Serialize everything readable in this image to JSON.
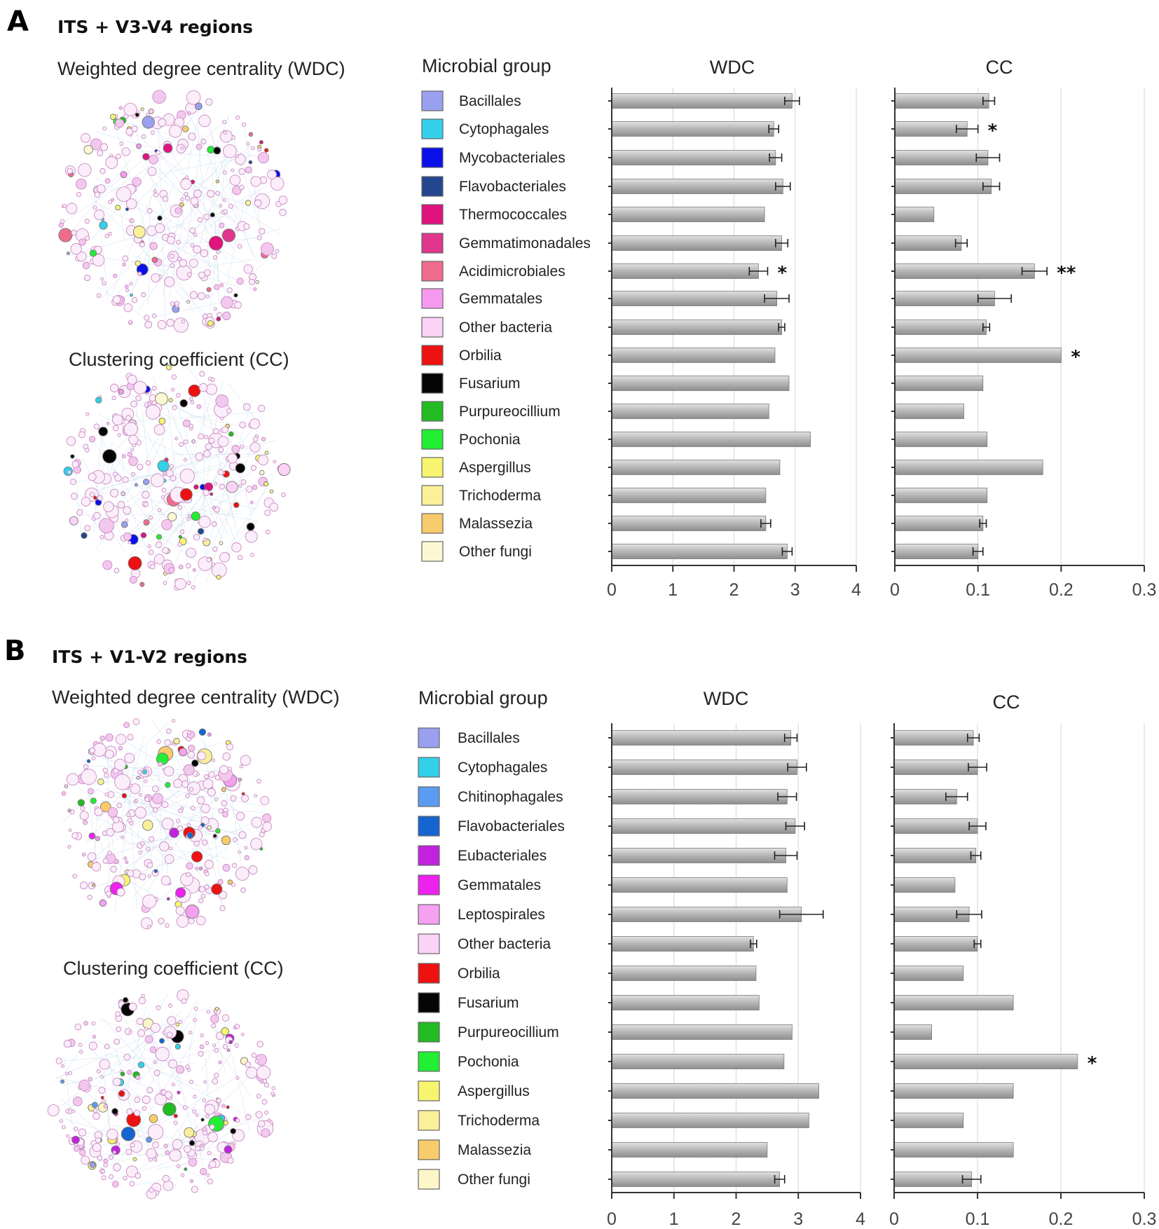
{
  "chart_data": [
    {
      "panel": "A",
      "title": "ITS + V3-V4 regions",
      "network_labels": [
        "Weighted degree centrality (WDC)",
        "Clustering coefficient (CC)"
      ],
      "legend_title": "Microbial group",
      "type": "bar",
      "orientation": "horizontal",
      "groups": [
        {
          "name": "Bacillales",
          "color": "#9aa0f0"
        },
        {
          "name": "Cytophagales",
          "color": "#33d0ea"
        },
        {
          "name": "Mycobacteriales",
          "color": "#0a10e8"
        },
        {
          "name": "Flavobacteriales",
          "color": "#23468f"
        },
        {
          "name": "Thermococcales",
          "color": "#e0137f"
        },
        {
          "name": "Gemmatimonadales",
          "color": "#e0368e"
        },
        {
          "name": "Acidimicrobiales",
          "color": "#f06c8c"
        },
        {
          "name": "Gemmatales",
          "color": "#f59af0"
        },
        {
          "name": "Other bacteria",
          "color": "#fbd3f6"
        },
        {
          "name": "Orbilia",
          "color": "#ee1111"
        },
        {
          "name": "Fusarium",
          "color": "#050505"
        },
        {
          "name": "Purpureocillium",
          "color": "#22bb22"
        },
        {
          "name": "Pochonia",
          "color": "#22ee33"
        },
        {
          "name": "Aspergillus",
          "color": "#f7f570"
        },
        {
          "name": "Trichoderma",
          "color": "#fbf09a"
        },
        {
          "name": "Malassezia",
          "color": "#f8cc6c"
        },
        {
          "name": "Other fungi",
          "color": "#fdf8d4"
        }
      ],
      "series": [
        {
          "name": "WDC",
          "xlim": [
            0,
            4
          ],
          "ticks": [
            "0",
            "1",
            "2",
            "3",
            "4"
          ],
          "values": [
            2.95,
            2.65,
            2.68,
            2.8,
            2.5,
            2.78,
            2.4,
            2.7,
            2.78,
            2.67,
            2.9,
            2.57,
            3.25,
            2.75,
            2.52,
            2.52,
            2.87
          ],
          "errors": [
            0.12,
            0.08,
            0.1,
            0.12,
            0,
            0.1,
            0.15,
            0.2,
            0.05,
            0,
            0,
            0,
            0,
            0,
            0,
            0.08,
            0.08
          ],
          "significance": [
            "",
            "",
            "",
            "",
            "",
            "",
            "*",
            "",
            "",
            "",
            "",
            "",
            "",
            "",
            "",
            "",
            ""
          ]
        },
        {
          "name": "CC",
          "xlim": [
            0,
            0.3
          ],
          "ticks": [
            "0",
            "0.1",
            "0.2",
            "0.3"
          ],
          "values": [
            0.113,
            0.087,
            0.112,
            0.116,
            0.047,
            0.08,
            0.168,
            0.12,
            0.11,
            0.2,
            0.106,
            0.083,
            0.111,
            0.178,
            0.111,
            0.106,
            0.1
          ],
          "errors": [
            0.007,
            0.013,
            0.014,
            0.01,
            0,
            0.007,
            0.015,
            0.02,
            0.004,
            0,
            0,
            0,
            0,
            0,
            0,
            0.004,
            0.006
          ],
          "significance": [
            "",
            "*",
            "",
            "",
            "",
            "",
            "**",
            "",
            "",
            "*",
            "",
            "",
            "",
            "",
            "",
            "",
            ""
          ]
        }
      ]
    },
    {
      "panel": "B",
      "title": "ITS + V1-V2 regions",
      "network_labels": [
        "Weighted degree centrality (WDC)",
        "Clustering coefficient (CC)"
      ],
      "legend_title": "Microbial group",
      "type": "bar",
      "orientation": "horizontal",
      "groups": [
        {
          "name": "Bacillales",
          "color": "#9aa0f0"
        },
        {
          "name": "Cytophagales",
          "color": "#33d0ea"
        },
        {
          "name": "Chitinophagales",
          "color": "#5b9cf2"
        },
        {
          "name": "Flavobacteriales",
          "color": "#1565d0"
        },
        {
          "name": "Eubacteriales",
          "color": "#c222dd"
        },
        {
          "name": "Gemmatales",
          "color": "#ee22ee"
        },
        {
          "name": "Leptospirales",
          "color": "#f5a0f0"
        },
        {
          "name": "Other bacteria",
          "color": "#fbd3f6"
        },
        {
          "name": "Orbilia",
          "color": "#ee1111"
        },
        {
          "name": "Fusarium",
          "color": "#050505"
        },
        {
          "name": "Purpureocillium",
          "color": "#22bb22"
        },
        {
          "name": "Pochonia",
          "color": "#22ee33"
        },
        {
          "name": "Aspergillus",
          "color": "#f7f570"
        },
        {
          "name": "Trichoderma",
          "color": "#fbf09a"
        },
        {
          "name": "Malassezia",
          "color": "#f8cc6c"
        },
        {
          "name": "Other fungi",
          "color": "#fdf6c8"
        }
      ],
      "series": [
        {
          "name": "WDC",
          "xlim": [
            0,
            4
          ],
          "ticks": [
            "0",
            "1",
            "2",
            "3",
            "4"
          ],
          "values": [
            2.88,
            2.98,
            2.82,
            2.95,
            2.8,
            2.82,
            3.05,
            2.28,
            2.32,
            2.37,
            2.9,
            2.77,
            3.33,
            3.17,
            2.5,
            2.7
          ],
          "errors": [
            0.1,
            0.15,
            0.15,
            0.15,
            0.18,
            0,
            0.35,
            0.05,
            0,
            0,
            0,
            0,
            0,
            0,
            0,
            0.08
          ],
          "significance": [
            "",
            "",
            "",
            "",
            "",
            "",
            "",
            "",
            "",
            "",
            "",
            "",
            "",
            "",
            "",
            ""
          ]
        },
        {
          "name": "CC",
          "xlim": [
            0,
            0.3
          ],
          "ticks": [
            "0",
            "0.1",
            "0.2",
            "0.3"
          ],
          "values": [
            0.095,
            0.1,
            0.075,
            0.1,
            0.098,
            0.073,
            0.09,
            0.1,
            0.083,
            0.143,
            0.045,
            0.22,
            0.143,
            0.083,
            0.143,
            0.093
          ],
          "errors": [
            0.007,
            0.011,
            0.013,
            0.01,
            0.006,
            0,
            0.015,
            0.004,
            0,
            0,
            0,
            0,
            0,
            0,
            0,
            0.011
          ],
          "significance": [
            "",
            "",
            "",
            "",
            "",
            "",
            "",
            "",
            "",
            "",
            "",
            "*",
            "",
            "",
            "",
            ""
          ]
        }
      ]
    }
  ]
}
